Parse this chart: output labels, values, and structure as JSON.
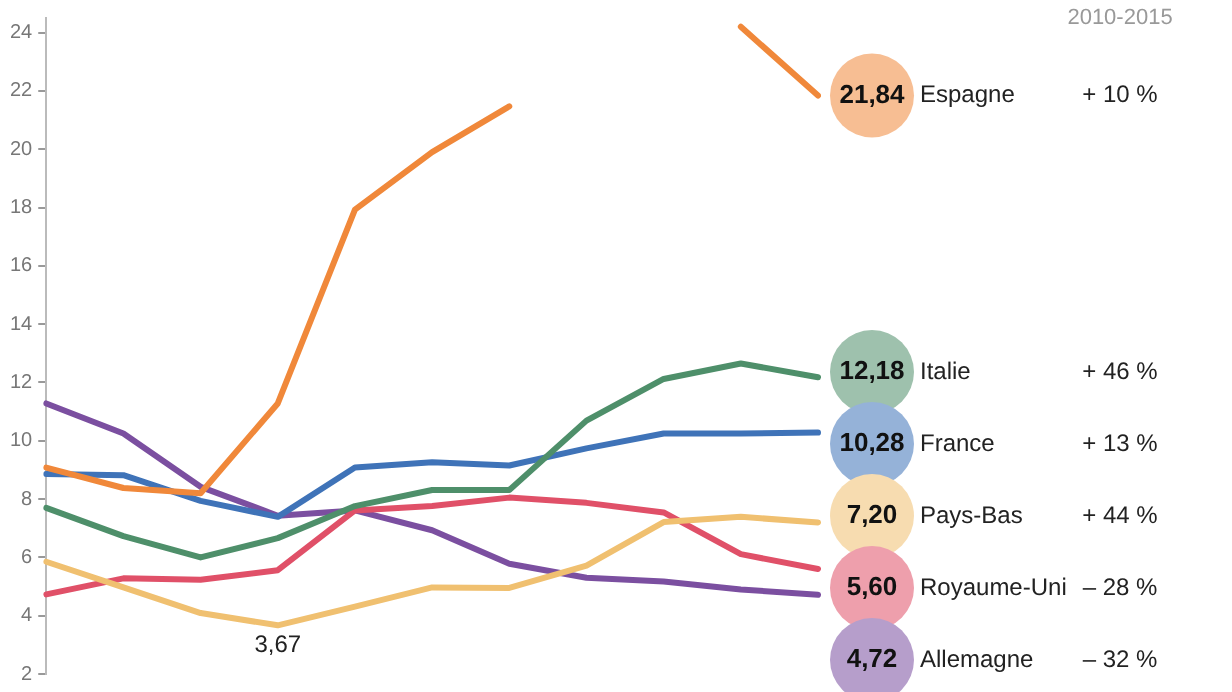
{
  "chart_data": {
    "type": "line",
    "categories": [
      null,
      null,
      null,
      null,
      null,
      null,
      null,
      null,
      null,
      null,
      null
    ],
    "ylim": [
      2,
      24.5
    ],
    "yticks": [
      2,
      4,
      6,
      8,
      10,
      12,
      14,
      16,
      18,
      20,
      22,
      24
    ],
    "grid": false,
    "legend": false,
    "tick_labels": "y",
    "marker": "none",
    "line_style": "solid",
    "annotations": [
      "2010-2015",
      "+ 10 %",
      "+ 46 %",
      "+ 13 %",
      "+ 44 %",
      "– 28 %",
      "– 32 %"
    ],
    "series": [
      {
        "name": "Espagne",
        "color": "#f0883a",
        "values": [
          9.08,
          8.38,
          8.2,
          11.28,
          17.93,
          19.9,
          21.47,
          null,
          null,
          24.2,
          21.84
        ],
        "value_labels": [
          null,
          null,
          null,
          null,
          null,
          null,
          null,
          null,
          null,
          null,
          "21,84"
        ]
      },
      {
        "name": "Italie",
        "color": "#4e8f6a",
        "values": [
          7.7,
          6.73,
          6.0,
          6.66,
          7.76,
          8.31,
          8.31,
          10.69,
          12.12,
          12.65,
          12.18
        ],
        "value_labels": [
          null,
          null,
          null,
          null,
          null,
          null,
          null,
          null,
          null,
          null,
          "12,18"
        ]
      },
      {
        "name": "France",
        "color": "#3f73b8",
        "values": [
          8.86,
          8.82,
          7.94,
          7.39,
          9.08,
          9.26,
          9.15,
          9.74,
          10.25,
          10.25,
          10.28
        ],
        "value_labels": [
          null,
          null,
          null,
          null,
          null,
          null,
          null,
          null,
          null,
          null,
          "10,28"
        ]
      },
      {
        "name": "Pays-Bas",
        "color": "#f0c070",
        "values": [
          5.85,
          4.97,
          4.09,
          3.67,
          4.31,
          4.97,
          4.95,
          5.72,
          7.21,
          7.39,
          7.2
        ],
        "value_labels": [
          null,
          null,
          null,
          "3,67",
          null,
          null,
          null,
          null,
          null,
          null,
          "7,20"
        ]
      },
      {
        "name": "Royaume-Uni",
        "color": "#e05068",
        "values": [
          4.73,
          5.28,
          5.23,
          5.56,
          7.61,
          7.76,
          8.05,
          7.87,
          7.54,
          6.11,
          5.6
        ],
        "value_labels": [
          null,
          null,
          null,
          null,
          null,
          null,
          null,
          null,
          null,
          null,
          "5,60"
        ]
      },
      {
        "name": "Allemagne",
        "color": "#7b4fa0",
        "values": [
          11.28,
          10.25,
          8.42,
          7.43,
          7.61,
          6.93,
          5.78,
          5.3,
          5.17,
          4.9,
          4.72
        ],
        "value_labels": [
          null,
          null,
          null,
          null,
          null,
          null,
          null,
          null,
          null,
          null,
          "4,72"
        ]
      }
    ]
  }
}
